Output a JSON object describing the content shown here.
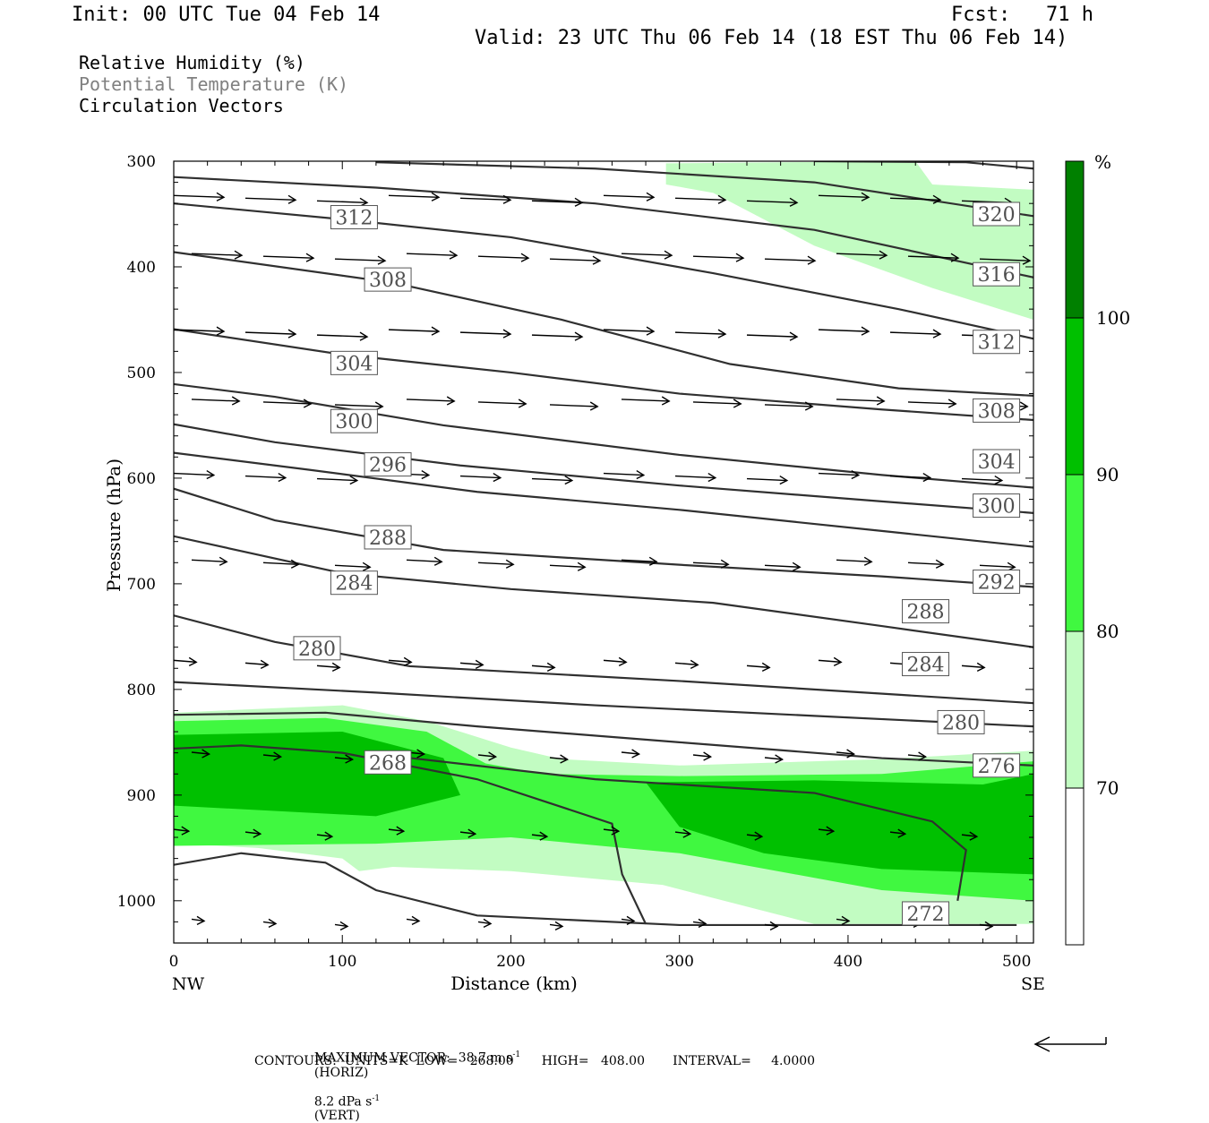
{
  "header": {
    "init": "Init: 00 UTC Tue 04 Feb 14",
    "fcst": "Fcst:   71 h",
    "valid": "Valid: 23 UTC Thu 06 Feb 14 (18 EST Thu 06 Feb 14)"
  },
  "legend": {
    "line1": "Relative Humidity (%)",
    "line2": "Potential Temperature (K)",
    "line3": "Circulation Vectors"
  },
  "colors": {
    "rh70": "#c2fcc2",
    "rh80": "#40f840",
    "rh90": "#00c000",
    "rh100": "#008000",
    "theta_line": "#303030",
    "label_text": "#505050"
  },
  "chart_data": {
    "type": "contour",
    "xlabel": "Distance (km)",
    "ylabel": "Pressure (hPa)",
    "xlim": [
      0,
      510
    ],
    "ylim": [
      1040,
      300
    ],
    "x_ticks": [
      "0",
      "100",
      "200",
      "300",
      "400",
      "500"
    ],
    "y_ticks": [
      "300",
      "400",
      "500",
      "600",
      "700",
      "800",
      "900",
      "1000"
    ],
    "x_end_labels": {
      "left": "NW",
      "right": "SE"
    },
    "colorbar": {
      "unit": "%",
      "levels": [
        "70",
        "80",
        "90",
        "100"
      ]
    },
    "theta_lines": [
      {
        "points": [
          [
            0,
            966
          ],
          [
            40,
            955
          ],
          [
            90,
            964
          ],
          [
            120,
            990
          ],
          [
            180,
            1014
          ],
          [
            300,
            1023
          ],
          [
            500,
            1023
          ]
        ]
      },
      {
        "points": [
          [
            0,
            856
          ],
          [
            40,
            853
          ],
          [
            100,
            860
          ],
          [
            180,
            885
          ],
          [
            260,
            927
          ],
          [
            266,
            975
          ],
          [
            280,
            1022
          ]
        ]
      },
      {
        "points": [
          [
            130,
            863
          ],
          [
            250,
            885
          ],
          [
            380,
            898
          ],
          [
            450,
            925
          ],
          [
            470,
            952
          ],
          [
            465,
            1000
          ]
        ]
      },
      {
        "points": [
          [
            0,
            824
          ],
          [
            90,
            822
          ],
          [
            180,
            835
          ],
          [
            300,
            850
          ],
          [
            420,
            865
          ],
          [
            510,
            872
          ]
        ]
      },
      {
        "points": [
          [
            0,
            793
          ],
          [
            120,
            803
          ],
          [
            250,
            815
          ],
          [
            380,
            825
          ],
          [
            510,
            835
          ]
        ]
      },
      {
        "points": [
          [
            0,
            730
          ],
          [
            60,
            755
          ],
          [
            140,
            778
          ],
          [
            300,
            792
          ],
          [
            430,
            805
          ],
          [
            510,
            813
          ]
        ]
      },
      {
        "points": [
          [
            0,
            655
          ],
          [
            100,
            690
          ],
          [
            200,
            705
          ],
          [
            320,
            718
          ],
          [
            420,
            740
          ],
          [
            510,
            760
          ]
        ]
      },
      {
        "points": [
          [
            0,
            610
          ],
          [
            60,
            640
          ],
          [
            160,
            668
          ],
          [
            300,
            682
          ],
          [
            420,
            693
          ],
          [
            510,
            703
          ]
        ]
      },
      {
        "points": [
          [
            0,
            576
          ],
          [
            80,
            592
          ],
          [
            180,
            613
          ],
          [
            300,
            630
          ],
          [
            420,
            650
          ],
          [
            510,
            665
          ]
        ]
      },
      {
        "points": [
          [
            0,
            549
          ],
          [
            60,
            566
          ],
          [
            170,
            588
          ],
          [
            300,
            607
          ],
          [
            420,
            622
          ],
          [
            510,
            633
          ]
        ]
      },
      {
        "points": [
          [
            0,
            511
          ],
          [
            60,
            523
          ],
          [
            160,
            550
          ],
          [
            300,
            578
          ],
          [
            420,
            597
          ],
          [
            510,
            609
          ]
        ]
      },
      {
        "points": [
          [
            0,
            459
          ],
          [
            100,
            483
          ],
          [
            200,
            500
          ],
          [
            300,
            520
          ],
          [
            420,
            535
          ],
          [
            510,
            545
          ]
        ]
      },
      {
        "points": [
          [
            0,
            386
          ],
          [
            130,
            415
          ],
          [
            230,
            450
          ],
          [
            330,
            492
          ],
          [
            430,
            515
          ],
          [
            510,
            522
          ]
        ]
      },
      {
        "points": [
          [
            0,
            340
          ],
          [
            100,
            355
          ],
          [
            200,
            372
          ],
          [
            320,
            406
          ],
          [
            430,
            440
          ],
          [
            510,
            468
          ]
        ]
      },
      {
        "points": [
          [
            0,
            315
          ],
          [
            120,
            325
          ],
          [
            250,
            340
          ],
          [
            380,
            365
          ],
          [
            510,
            410
          ]
        ]
      },
      {
        "points": [
          [
            120,
            301
          ],
          [
            250,
            307
          ],
          [
            380,
            320
          ],
          [
            510,
            352
          ]
        ]
      },
      {
        "points": [
          [
            380,
            300
          ],
          [
            470,
            301
          ],
          [
            510,
            307
          ]
        ]
      }
    ],
    "theta_labels": [
      {
        "text": "312",
        "x": 107,
        "y": 353
      },
      {
        "text": "308",
        "x": 127,
        "y": 412
      },
      {
        "text": "304",
        "x": 107,
        "y": 491
      },
      {
        "text": "300",
        "x": 107,
        "y": 546
      },
      {
        "text": "296",
        "x": 127,
        "y": 587
      },
      {
        "text": "288",
        "x": 127,
        "y": 656
      },
      {
        "text": "284",
        "x": 107,
        "y": 699
      },
      {
        "text": "280",
        "x": 85,
        "y": 761
      },
      {
        "text": "268",
        "x": 127,
        "y": 869
      },
      {
        "text": "320",
        "x": 488,
        "y": 350
      },
      {
        "text": "316",
        "x": 488,
        "y": 407
      },
      {
        "text": "312",
        "x": 488,
        "y": 471
      },
      {
        "text": "308",
        "x": 488,
        "y": 536
      },
      {
        "text": "304",
        "x": 488,
        "y": 584
      },
      {
        "text": "300",
        "x": 488,
        "y": 626
      },
      {
        "text": "292",
        "x": 488,
        "y": 698
      },
      {
        "text": "288",
        "x": 446,
        "y": 726
      },
      {
        "text": "284",
        "x": 446,
        "y": 776
      },
      {
        "text": "280",
        "x": 467,
        "y": 831
      },
      {
        "text": "276",
        "x": 488,
        "y": 872
      },
      {
        "text": "272",
        "x": 446,
        "y": 1012
      }
    ],
    "rh_regions": [
      {
        "level": "70",
        "points": [
          [
            292,
            302
          ],
          [
            440,
            300
          ],
          [
            450,
            322
          ],
          [
            510,
            327
          ],
          [
            510,
            450
          ],
          [
            450,
            420
          ],
          [
            380,
            380
          ],
          [
            320,
            330
          ],
          [
            292,
            322
          ]
        ]
      },
      {
        "level": "70",
        "points": [
          [
            0,
            822
          ],
          [
            100,
            815
          ],
          [
            150,
            830
          ],
          [
            200,
            855
          ],
          [
            230,
            866
          ],
          [
            300,
            872
          ],
          [
            420,
            866
          ],
          [
            510,
            858
          ],
          [
            510,
            1022
          ],
          [
            380,
            1022
          ],
          [
            290,
            985
          ],
          [
            200,
            972
          ],
          [
            130,
            968
          ],
          [
            110,
            972
          ],
          [
            100,
            960
          ],
          [
            50,
            950
          ],
          [
            0,
            946
          ]
        ]
      },
      {
        "level": "80",
        "points": [
          [
            0,
            830
          ],
          [
            90,
            827
          ],
          [
            150,
            840
          ],
          [
            185,
            870
          ],
          [
            220,
            880
          ],
          [
            300,
            882
          ],
          [
            420,
            880
          ],
          [
            510,
            868
          ],
          [
            510,
            1000
          ],
          [
            420,
            990
          ],
          [
            300,
            955
          ],
          [
            200,
            940
          ],
          [
            120,
            946
          ],
          [
            0,
            948
          ]
        ]
      },
      {
        "level": "90",
        "points": [
          [
            0,
            843
          ],
          [
            100,
            840
          ],
          [
            160,
            865
          ],
          [
            170,
            900
          ],
          [
            120,
            920
          ],
          [
            0,
            910
          ]
        ]
      },
      {
        "level": "90",
        "points": [
          [
            280,
            888
          ],
          [
            380,
            886
          ],
          [
            480,
            890
          ],
          [
            510,
            880
          ],
          [
            510,
            975
          ],
          [
            420,
            970
          ],
          [
            350,
            955
          ],
          [
            300,
            930
          ]
        ]
      }
    ],
    "vector_rows": [
      {
        "p": 335,
        "len": 1.0
      },
      {
        "p": 390,
        "len": 1.0
      },
      {
        "p": 462,
        "len": 1.0
      },
      {
        "p": 528,
        "len": 0.95
      },
      {
        "p": 598,
        "len": 0.8
      },
      {
        "p": 680,
        "len": 0.7
      },
      {
        "p": 775,
        "len": 0.45
      },
      {
        "p": 862,
        "len": 0.35
      },
      {
        "p": 935,
        "len": 0.3
      },
      {
        "p": 1020,
        "len": 0.25
      }
    ],
    "footer_max_vector": "MAXIMUM VECTOR:  38.7 m s",
    "footer_horiz": "(HORIZ)",
    "footer_vert": "8.2 dPa s",
    "footer_vert_unit": "(VERT)",
    "footer_contours": "CONTOURS:  UNITS=K  LOW=   268.00       HIGH=   408.00       INTERVAL=     4.0000",
    "superscript": "-1"
  }
}
